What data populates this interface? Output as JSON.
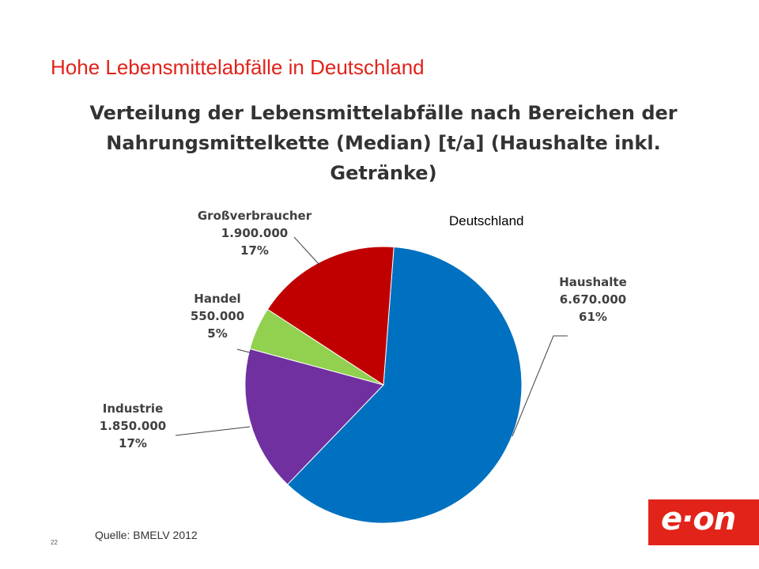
{
  "slide": {
    "title": "Hohe Lebensmittelabfälle in Deutschland",
    "source": "Quelle:  BMELV  2012",
    "page_number": "22",
    "logo_text": "e·on",
    "brand_color": "#e2231a"
  },
  "chart_data": {
    "type": "pie",
    "title_lines": [
      "Verteilung der Lebensmittelabfälle nach Bereichen der",
      "Nahrungsmittelkette (Median) [t/a] (Haushalte inkl.",
      "Getränke)"
    ],
    "region_label": "Deutschland",
    "slices": [
      {
        "name": "Haushalte",
        "value": "6.670.000",
        "percent_label": "61%",
        "percent": 61,
        "color": "#0070c0"
      },
      {
        "name": "Industrie",
        "value": "1.850.000",
        "percent_label": "17%",
        "percent": 17,
        "color": "#7030a0"
      },
      {
        "name": "Handel",
        "value": "550.000",
        "percent_label": "5%",
        "percent": 5,
        "color": "#92d050"
      },
      {
        "name": "Großverbraucher",
        "value": "1.900.000",
        "percent_label": "17%",
        "percent": 17,
        "color": "#c00000"
      }
    ]
  }
}
